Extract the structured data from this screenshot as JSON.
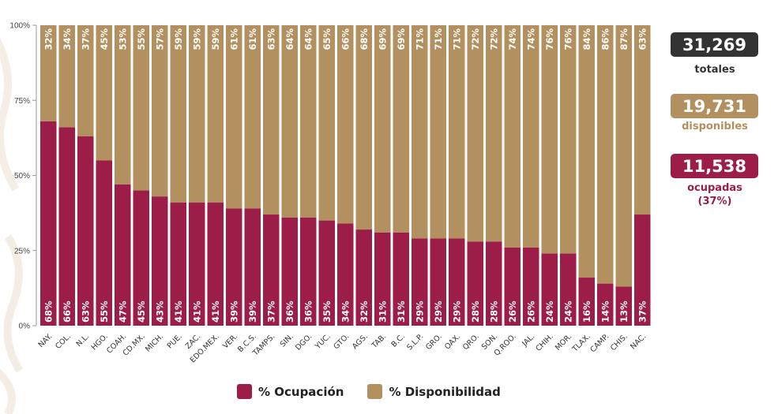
{
  "colors": {
    "ocupacion": "#9b1d48",
    "disponibilidad": "#b3905f",
    "totales_box": "#333333",
    "disponibles_text": "#b3905f",
    "ocupadas_text": "#9b1d48"
  },
  "stats": {
    "totales_value": "31,269",
    "totales_label": "totales",
    "disponibles_value": "19,731",
    "disponibles_label": "disponibles",
    "ocupadas_value": "11,538",
    "ocupadas_label": "ocupadas",
    "ocupadas_pct": "(37%)"
  },
  "legend": {
    "ocupacion": "% Ocupación",
    "disponibilidad": "% Disponibilidad"
  },
  "chart_data": {
    "type": "bar",
    "stacked": true,
    "categories": [
      "NAY.",
      "COL.",
      "N.L.",
      "HGO.",
      "COAH.",
      "CD.MX.",
      "MICH.",
      "PUE.",
      "ZAC.",
      "EDO.MEX.",
      "VER.",
      "B.C.S.",
      "TAMPS.",
      "SIN.",
      "DGO.",
      "YUC.",
      "GTO.",
      "AGS.",
      "TAB.",
      "B.C.",
      "S.L.P.",
      "GRO.",
      "OAX.",
      "QRO.",
      "SON.",
      "Q.ROO.",
      "JAL.",
      "CHIH.",
      "MOR.",
      "TLAX.",
      "CAMP.",
      "CHIS.",
      "NAC."
    ],
    "series": [
      {
        "name": "% Ocupación",
        "values": [
          68,
          66,
          63,
          55,
          47,
          45,
          43,
          41,
          41,
          41,
          39,
          39,
          37,
          36,
          36,
          35,
          34,
          32,
          31,
          31,
          29,
          29,
          29,
          28,
          28,
          26,
          26,
          24,
          24,
          16,
          14,
          13,
          37
        ],
        "labels": [
          "68%",
          "66%",
          "63%",
          "55%",
          "47%",
          "45%",
          "43%",
          "41%",
          "41%",
          "41%",
          "39%",
          "39%",
          "37%",
          "36%",
          "36%",
          "35%",
          "34%",
          "32%",
          "31%",
          "31%",
          "29%",
          "29%",
          "29%",
          "28%",
          "28%",
          "26%",
          "26%",
          "24%",
          "24%",
          "16%",
          "14%",
          "13%",
          "37%"
        ]
      },
      {
        "name": "% Disponibilidad",
        "values": [
          32,
          34,
          37,
          45,
          53,
          55,
          57,
          59,
          59,
          59,
          61,
          61,
          63,
          64,
          64,
          65,
          66,
          68,
          69,
          69,
          71,
          71,
          71,
          72,
          72,
          74,
          74,
          76,
          76,
          84,
          86,
          87,
          63
        ],
        "labels": [
          "32%",
          "34%",
          "37%",
          "45%",
          "53%",
          "55%",
          "57%",
          "59%",
          "59%",
          "59%",
          "61%",
          "61%",
          "63%",
          "64%",
          "64%",
          "65%",
          "66%",
          "68%",
          "69%",
          "69%",
          "71%",
          "71%",
          "71%",
          "72%",
          "72%",
          "74%",
          "74%",
          "76%",
          "76%",
          "84%",
          "86%",
          "87%",
          "63%"
        ]
      }
    ],
    "yticks": [
      "0%",
      "25%",
      "50%",
      "75%",
      "100%"
    ],
    "ylim": [
      0,
      100
    ],
    "grid": false,
    "legend_position": "bottom"
  }
}
